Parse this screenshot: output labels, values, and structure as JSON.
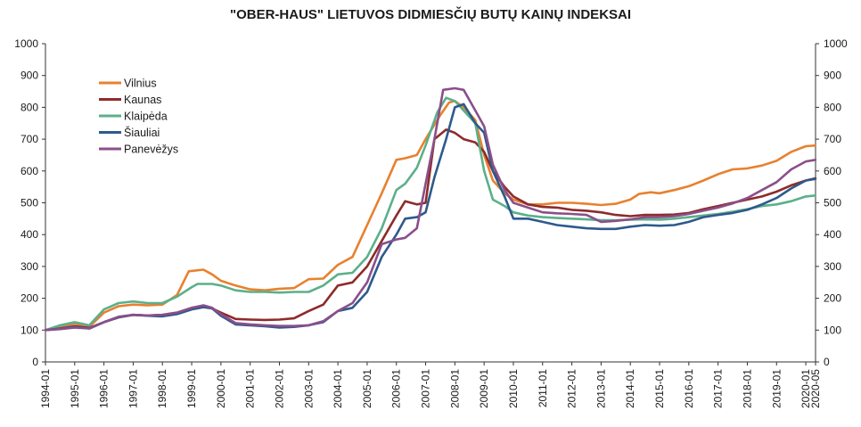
{
  "chart_data": {
    "type": "line",
    "title": "\"OBER-HAUS\" LIETUVOS DIDMIESČIŲ BUTŲ KAINŲ INDEKSAI",
    "xlabel": "",
    "ylabel": "",
    "ylim": [
      0,
      1000
    ],
    "yticks": [
      0,
      100,
      200,
      300,
      400,
      500,
      600,
      700,
      800,
      900,
      1000
    ],
    "xlim": [
      1994.0,
      2020.333
    ],
    "xtick_labels": [
      "1994-01",
      "1995-01",
      "1996-01",
      "1997-01",
      "1998-01",
      "1999-01",
      "2000-01",
      "2001-01",
      "2002-01",
      "2003-01",
      "2004-01",
      "2005-01",
      "2006-01",
      "2007-01",
      "2008-01",
      "2009-01",
      "2010-01",
      "2011-01",
      "2012-01",
      "2013-01",
      "2014-01",
      "2015-01",
      "2016-01",
      "2017-01",
      "2018-01",
      "2019-01",
      "2020-01",
      "2020-05"
    ],
    "grid": false,
    "legend_position": "top-left",
    "series": [
      {
        "name": "Vilnius",
        "color": "#e8812f",
        "points": [
          [
            1994.0,
            100
          ],
          [
            1994.5,
            110
          ],
          [
            1995.0,
            120
          ],
          [
            1995.5,
            110
          ],
          [
            1996.0,
            155
          ],
          [
            1996.5,
            175
          ],
          [
            1997.0,
            180
          ],
          [
            1997.5,
            178
          ],
          [
            1998.0,
            180
          ],
          [
            1998.5,
            210
          ],
          [
            1998.9,
            285
          ],
          [
            1999.4,
            290
          ],
          [
            1999.7,
            275
          ],
          [
            2000.0,
            255
          ],
          [
            2000.5,
            240
          ],
          [
            2001.0,
            228
          ],
          [
            2001.5,
            225
          ],
          [
            2002.0,
            230
          ],
          [
            2002.5,
            232
          ],
          [
            2003.0,
            260
          ],
          [
            2003.5,
            262
          ],
          [
            2004.0,
            305
          ],
          [
            2004.5,
            330
          ],
          [
            2005.0,
            430
          ],
          [
            2005.5,
            530
          ],
          [
            2006.0,
            635
          ],
          [
            2006.3,
            640
          ],
          [
            2006.7,
            650
          ],
          [
            2007.0,
            700
          ],
          [
            2007.5,
            775
          ],
          [
            2007.8,
            815
          ],
          [
            2008.0,
            820
          ],
          [
            2008.3,
            800
          ],
          [
            2008.7,
            760
          ],
          [
            2009.0,
            650
          ],
          [
            2009.3,
            570
          ],
          [
            2009.7,
            530
          ],
          [
            2010.0,
            510
          ],
          [
            2010.5,
            495
          ],
          [
            2011.0,
            495
          ],
          [
            2011.5,
            500
          ],
          [
            2012.0,
            500
          ],
          [
            2012.5,
            497
          ],
          [
            2013.0,
            493
          ],
          [
            2013.5,
            497
          ],
          [
            2014.0,
            510
          ],
          [
            2014.3,
            528
          ],
          [
            2014.7,
            533
          ],
          [
            2015.0,
            530
          ],
          [
            2015.5,
            540
          ],
          [
            2016.0,
            552
          ],
          [
            2016.5,
            570
          ],
          [
            2017.0,
            590
          ],
          [
            2017.5,
            605
          ],
          [
            2018.0,
            608
          ],
          [
            2018.5,
            617
          ],
          [
            2019.0,
            632
          ],
          [
            2019.5,
            660
          ],
          [
            2020.0,
            678
          ],
          [
            2020.33,
            680
          ]
        ]
      },
      {
        "name": "Kaunas",
        "color": "#8e2b2b",
        "points": [
          [
            1994.0,
            100
          ],
          [
            1994.5,
            105
          ],
          [
            1995.0,
            112
          ],
          [
            1995.5,
            107
          ],
          [
            1996.0,
            125
          ],
          [
            1996.5,
            140
          ],
          [
            1997.0,
            148
          ],
          [
            1997.5,
            146
          ],
          [
            1998.0,
            148
          ],
          [
            1998.5,
            155
          ],
          [
            1999.0,
            170
          ],
          [
            1999.4,
            175
          ],
          [
            1999.7,
            168
          ],
          [
            2000.0,
            155
          ],
          [
            2000.5,
            135
          ],
          [
            2001.0,
            133
          ],
          [
            2001.5,
            132
          ],
          [
            2002.0,
            133
          ],
          [
            2002.5,
            137
          ],
          [
            2003.0,
            160
          ],
          [
            2003.5,
            180
          ],
          [
            2004.0,
            240
          ],
          [
            2004.5,
            250
          ],
          [
            2005.0,
            300
          ],
          [
            2005.5,
            380
          ],
          [
            2006.0,
            460
          ],
          [
            2006.3,
            505
          ],
          [
            2006.7,
            495
          ],
          [
            2007.0,
            500
          ],
          [
            2007.3,
            700
          ],
          [
            2007.7,
            730
          ],
          [
            2008.0,
            720
          ],
          [
            2008.3,
            700
          ],
          [
            2008.7,
            690
          ],
          [
            2009.0,
            660
          ],
          [
            2009.3,
            600
          ],
          [
            2009.7,
            550
          ],
          [
            2010.0,
            520
          ],
          [
            2010.5,
            495
          ],
          [
            2011.0,
            487
          ],
          [
            2011.5,
            485
          ],
          [
            2012.0,
            478
          ],
          [
            2012.5,
            475
          ],
          [
            2013.0,
            470
          ],
          [
            2013.5,
            462
          ],
          [
            2014.0,
            458
          ],
          [
            2014.5,
            462
          ],
          [
            2015.0,
            462
          ],
          [
            2015.5,
            463
          ],
          [
            2016.0,
            468
          ],
          [
            2016.5,
            480
          ],
          [
            2017.0,
            490
          ],
          [
            2017.5,
            500
          ],
          [
            2018.0,
            510
          ],
          [
            2018.5,
            520
          ],
          [
            2019.0,
            535
          ],
          [
            2019.5,
            555
          ],
          [
            2020.0,
            570
          ],
          [
            2020.33,
            577
          ]
        ]
      },
      {
        "name": "Klaipėda",
        "color": "#5bb08a",
        "points": [
          [
            1994.0,
            100
          ],
          [
            1994.5,
            115
          ],
          [
            1995.0,
            125
          ],
          [
            1995.5,
            115
          ],
          [
            1996.0,
            165
          ],
          [
            1996.5,
            185
          ],
          [
            1997.0,
            190
          ],
          [
            1997.5,
            185
          ],
          [
            1998.0,
            185
          ],
          [
            1998.5,
            205
          ],
          [
            1999.0,
            235
          ],
          [
            1999.2,
            245
          ],
          [
            1999.7,
            245
          ],
          [
            2000.0,
            240
          ],
          [
            2000.5,
            225
          ],
          [
            2001.0,
            220
          ],
          [
            2001.5,
            220
          ],
          [
            2002.0,
            218
          ],
          [
            2002.5,
            220
          ],
          [
            2003.0,
            220
          ],
          [
            2003.5,
            240
          ],
          [
            2004.0,
            275
          ],
          [
            2004.5,
            280
          ],
          [
            2005.0,
            330
          ],
          [
            2005.5,
            420
          ],
          [
            2006.0,
            540
          ],
          [
            2006.3,
            560
          ],
          [
            2006.7,
            610
          ],
          [
            2007.0,
            680
          ],
          [
            2007.4,
            785
          ],
          [
            2007.7,
            830
          ],
          [
            2008.0,
            820
          ],
          [
            2008.3,
            790
          ],
          [
            2008.7,
            750
          ],
          [
            2009.0,
            600
          ],
          [
            2009.3,
            510
          ],
          [
            2009.7,
            490
          ],
          [
            2010.0,
            470
          ],
          [
            2010.5,
            460
          ],
          [
            2011.0,
            455
          ],
          [
            2011.5,
            452
          ],
          [
            2012.0,
            450
          ],
          [
            2012.5,
            448
          ],
          [
            2013.0,
            445
          ],
          [
            2013.5,
            445
          ],
          [
            2014.0,
            447
          ],
          [
            2014.5,
            448
          ],
          [
            2015.0,
            447
          ],
          [
            2015.5,
            450
          ],
          [
            2016.0,
            455
          ],
          [
            2016.5,
            460
          ],
          [
            2017.0,
            465
          ],
          [
            2017.5,
            472
          ],
          [
            2018.0,
            480
          ],
          [
            2018.5,
            490
          ],
          [
            2019.0,
            495
          ],
          [
            2019.5,
            505
          ],
          [
            2020.0,
            520
          ],
          [
            2020.33,
            523
          ]
        ]
      },
      {
        "name": "Šiauliai",
        "color": "#2d5a8c",
        "points": [
          [
            1994.0,
            100
          ],
          [
            1994.5,
            105
          ],
          [
            1995.0,
            110
          ],
          [
            1995.5,
            105
          ],
          [
            1996.0,
            125
          ],
          [
            1996.5,
            140
          ],
          [
            1997.0,
            148
          ],
          [
            1997.5,
            145
          ],
          [
            1998.0,
            143
          ],
          [
            1998.5,
            150
          ],
          [
            1999.0,
            165
          ],
          [
            1999.4,
            172
          ],
          [
            1999.7,
            168
          ],
          [
            2000.0,
            145
          ],
          [
            2000.5,
            118
          ],
          [
            2001.0,
            115
          ],
          [
            2001.5,
            112
          ],
          [
            2002.0,
            108
          ],
          [
            2002.5,
            110
          ],
          [
            2003.0,
            115
          ],
          [
            2003.5,
            125
          ],
          [
            2004.0,
            160
          ],
          [
            2004.5,
            170
          ],
          [
            2005.0,
            220
          ],
          [
            2005.5,
            330
          ],
          [
            2006.0,
            400
          ],
          [
            2006.3,
            450
          ],
          [
            2006.7,
            455
          ],
          [
            2007.0,
            470
          ],
          [
            2007.3,
            580
          ],
          [
            2007.7,
            700
          ],
          [
            2008.0,
            800
          ],
          [
            2008.3,
            810
          ],
          [
            2008.7,
            750
          ],
          [
            2009.0,
            720
          ],
          [
            2009.3,
            600
          ],
          [
            2009.7,
            520
          ],
          [
            2010.0,
            450
          ],
          [
            2010.5,
            450
          ],
          [
            2011.0,
            440
          ],
          [
            2011.5,
            430
          ],
          [
            2012.0,
            425
          ],
          [
            2012.5,
            420
          ],
          [
            2013.0,
            418
          ],
          [
            2013.5,
            418
          ],
          [
            2014.0,
            425
          ],
          [
            2014.5,
            430
          ],
          [
            2015.0,
            428
          ],
          [
            2015.5,
            430
          ],
          [
            2016.0,
            440
          ],
          [
            2016.5,
            455
          ],
          [
            2017.0,
            462
          ],
          [
            2017.5,
            468
          ],
          [
            2018.0,
            478
          ],
          [
            2018.5,
            495
          ],
          [
            2019.0,
            515
          ],
          [
            2019.5,
            545
          ],
          [
            2020.0,
            570
          ],
          [
            2020.33,
            575
          ]
        ]
      },
      {
        "name": "Panevėžys",
        "color": "#8a4f8a",
        "points": [
          [
            1994.0,
            100
          ],
          [
            1994.5,
            103
          ],
          [
            1995.0,
            108
          ],
          [
            1995.5,
            105
          ],
          [
            1996.0,
            125
          ],
          [
            1996.5,
            142
          ],
          [
            1997.0,
            148
          ],
          [
            1997.5,
            146
          ],
          [
            1998.0,
            148
          ],
          [
            1998.5,
            155
          ],
          [
            1999.0,
            170
          ],
          [
            1999.4,
            178
          ],
          [
            1999.7,
            170
          ],
          [
            2000.0,
            150
          ],
          [
            2000.5,
            122
          ],
          [
            2001.0,
            118
          ],
          [
            2001.5,
            115
          ],
          [
            2002.0,
            113
          ],
          [
            2002.5,
            113
          ],
          [
            2003.0,
            115
          ],
          [
            2003.5,
            128
          ],
          [
            2004.0,
            160
          ],
          [
            2004.5,
            185
          ],
          [
            2005.0,
            250
          ],
          [
            2005.5,
            370
          ],
          [
            2006.0,
            385
          ],
          [
            2006.3,
            390
          ],
          [
            2006.7,
            420
          ],
          [
            2007.0,
            560
          ],
          [
            2007.3,
            700
          ],
          [
            2007.6,
            855
          ],
          [
            2008.0,
            860
          ],
          [
            2008.3,
            855
          ],
          [
            2008.7,
            790
          ],
          [
            2009.0,
            740
          ],
          [
            2009.3,
            620
          ],
          [
            2009.7,
            540
          ],
          [
            2010.0,
            500
          ],
          [
            2010.5,
            485
          ],
          [
            2011.0,
            470
          ],
          [
            2011.5,
            467
          ],
          [
            2012.0,
            465
          ],
          [
            2012.5,
            462
          ],
          [
            2013.0,
            440
          ],
          [
            2013.5,
            443
          ],
          [
            2014.0,
            448
          ],
          [
            2014.5,
            455
          ],
          [
            2015.0,
            455
          ],
          [
            2015.5,
            458
          ],
          [
            2016.0,
            465
          ],
          [
            2016.5,
            475
          ],
          [
            2017.0,
            485
          ],
          [
            2017.5,
            498
          ],
          [
            2018.0,
            515
          ],
          [
            2018.5,
            540
          ],
          [
            2019.0,
            565
          ],
          [
            2019.5,
            605
          ],
          [
            2020.0,
            630
          ],
          [
            2020.33,
            635
          ]
        ]
      }
    ]
  }
}
